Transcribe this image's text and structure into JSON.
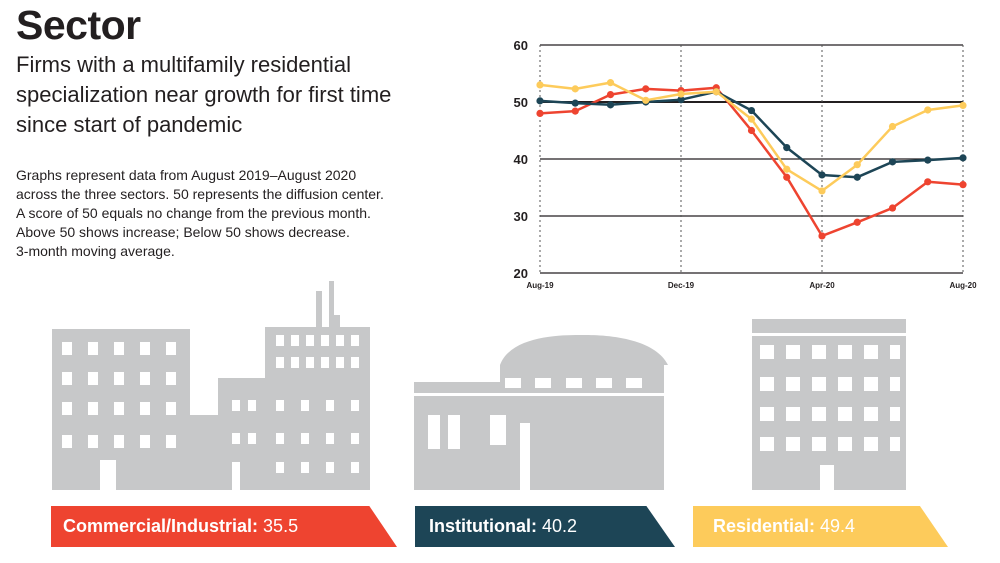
{
  "header": {
    "title": "Sector",
    "subtitle_lines": [
      "Firms with a multifamily residential",
      "specialization near growth for first time",
      "since start of pandemic"
    ],
    "notes_lines": [
      "Graphs represent data from August 2019–August 2020",
      "across the three sectors. 50 represents the diffusion center.",
      "A score of 50 equals no change from the previous month.",
      "Above 50 shows increase; Below 50 shows decrease.",
      "3-month moving average."
    ]
  },
  "colors": {
    "commercial": "#ee4430",
    "institutional": "#1d4556",
    "residential": "#fdcb5b",
    "building_gray": "#c7c8c9"
  },
  "chart_data": {
    "type": "line",
    "x": [
      "Aug-19",
      "Sep-19",
      "Oct-19",
      "Nov-19",
      "Dec-19",
      "Jan-20",
      "Feb-20",
      "Mar-20",
      "Apr-20",
      "May-20",
      "Jun-20",
      "Jul-20",
      "Aug-20"
    ],
    "xtick_labels": [
      "Aug-19",
      "Dec-19",
      "Apr-20",
      "Aug-20"
    ],
    "xtick_indices": [
      0,
      4,
      8,
      12
    ],
    "yticks": [
      20,
      30,
      40,
      50,
      60
    ],
    "ylim": [
      20,
      60
    ],
    "grid": true,
    "series": [
      {
        "name": "Commercial/Industrial",
        "color": "#ee4430",
        "values": [
          48.0,
          48.4,
          51.3,
          52.3,
          52.0,
          52.5,
          45.0,
          36.8,
          26.5,
          28.9,
          31.4,
          36.0,
          35.5
        ]
      },
      {
        "name": "Institutional",
        "color": "#1d4556",
        "values": [
          50.2,
          49.8,
          49.5,
          50.0,
          50.4,
          51.8,
          48.5,
          42.0,
          37.2,
          36.8,
          39.5,
          39.8,
          40.2
        ]
      },
      {
        "name": "Residential",
        "color": "#fdcb5b",
        "values": [
          53.0,
          52.3,
          53.4,
          50.3,
          51.4,
          51.8,
          47.0,
          38.2,
          34.4,
          39.0,
          45.7,
          48.6,
          49.4
        ]
      }
    ]
  },
  "banners": {
    "commercial": {
      "label": "Commercial/Industrial:",
      "value": "35.5"
    },
    "institutional": {
      "label": "Institutional:",
      "value": "40.2"
    },
    "residential": {
      "label": "Residential:",
      "value": "49.4"
    }
  }
}
